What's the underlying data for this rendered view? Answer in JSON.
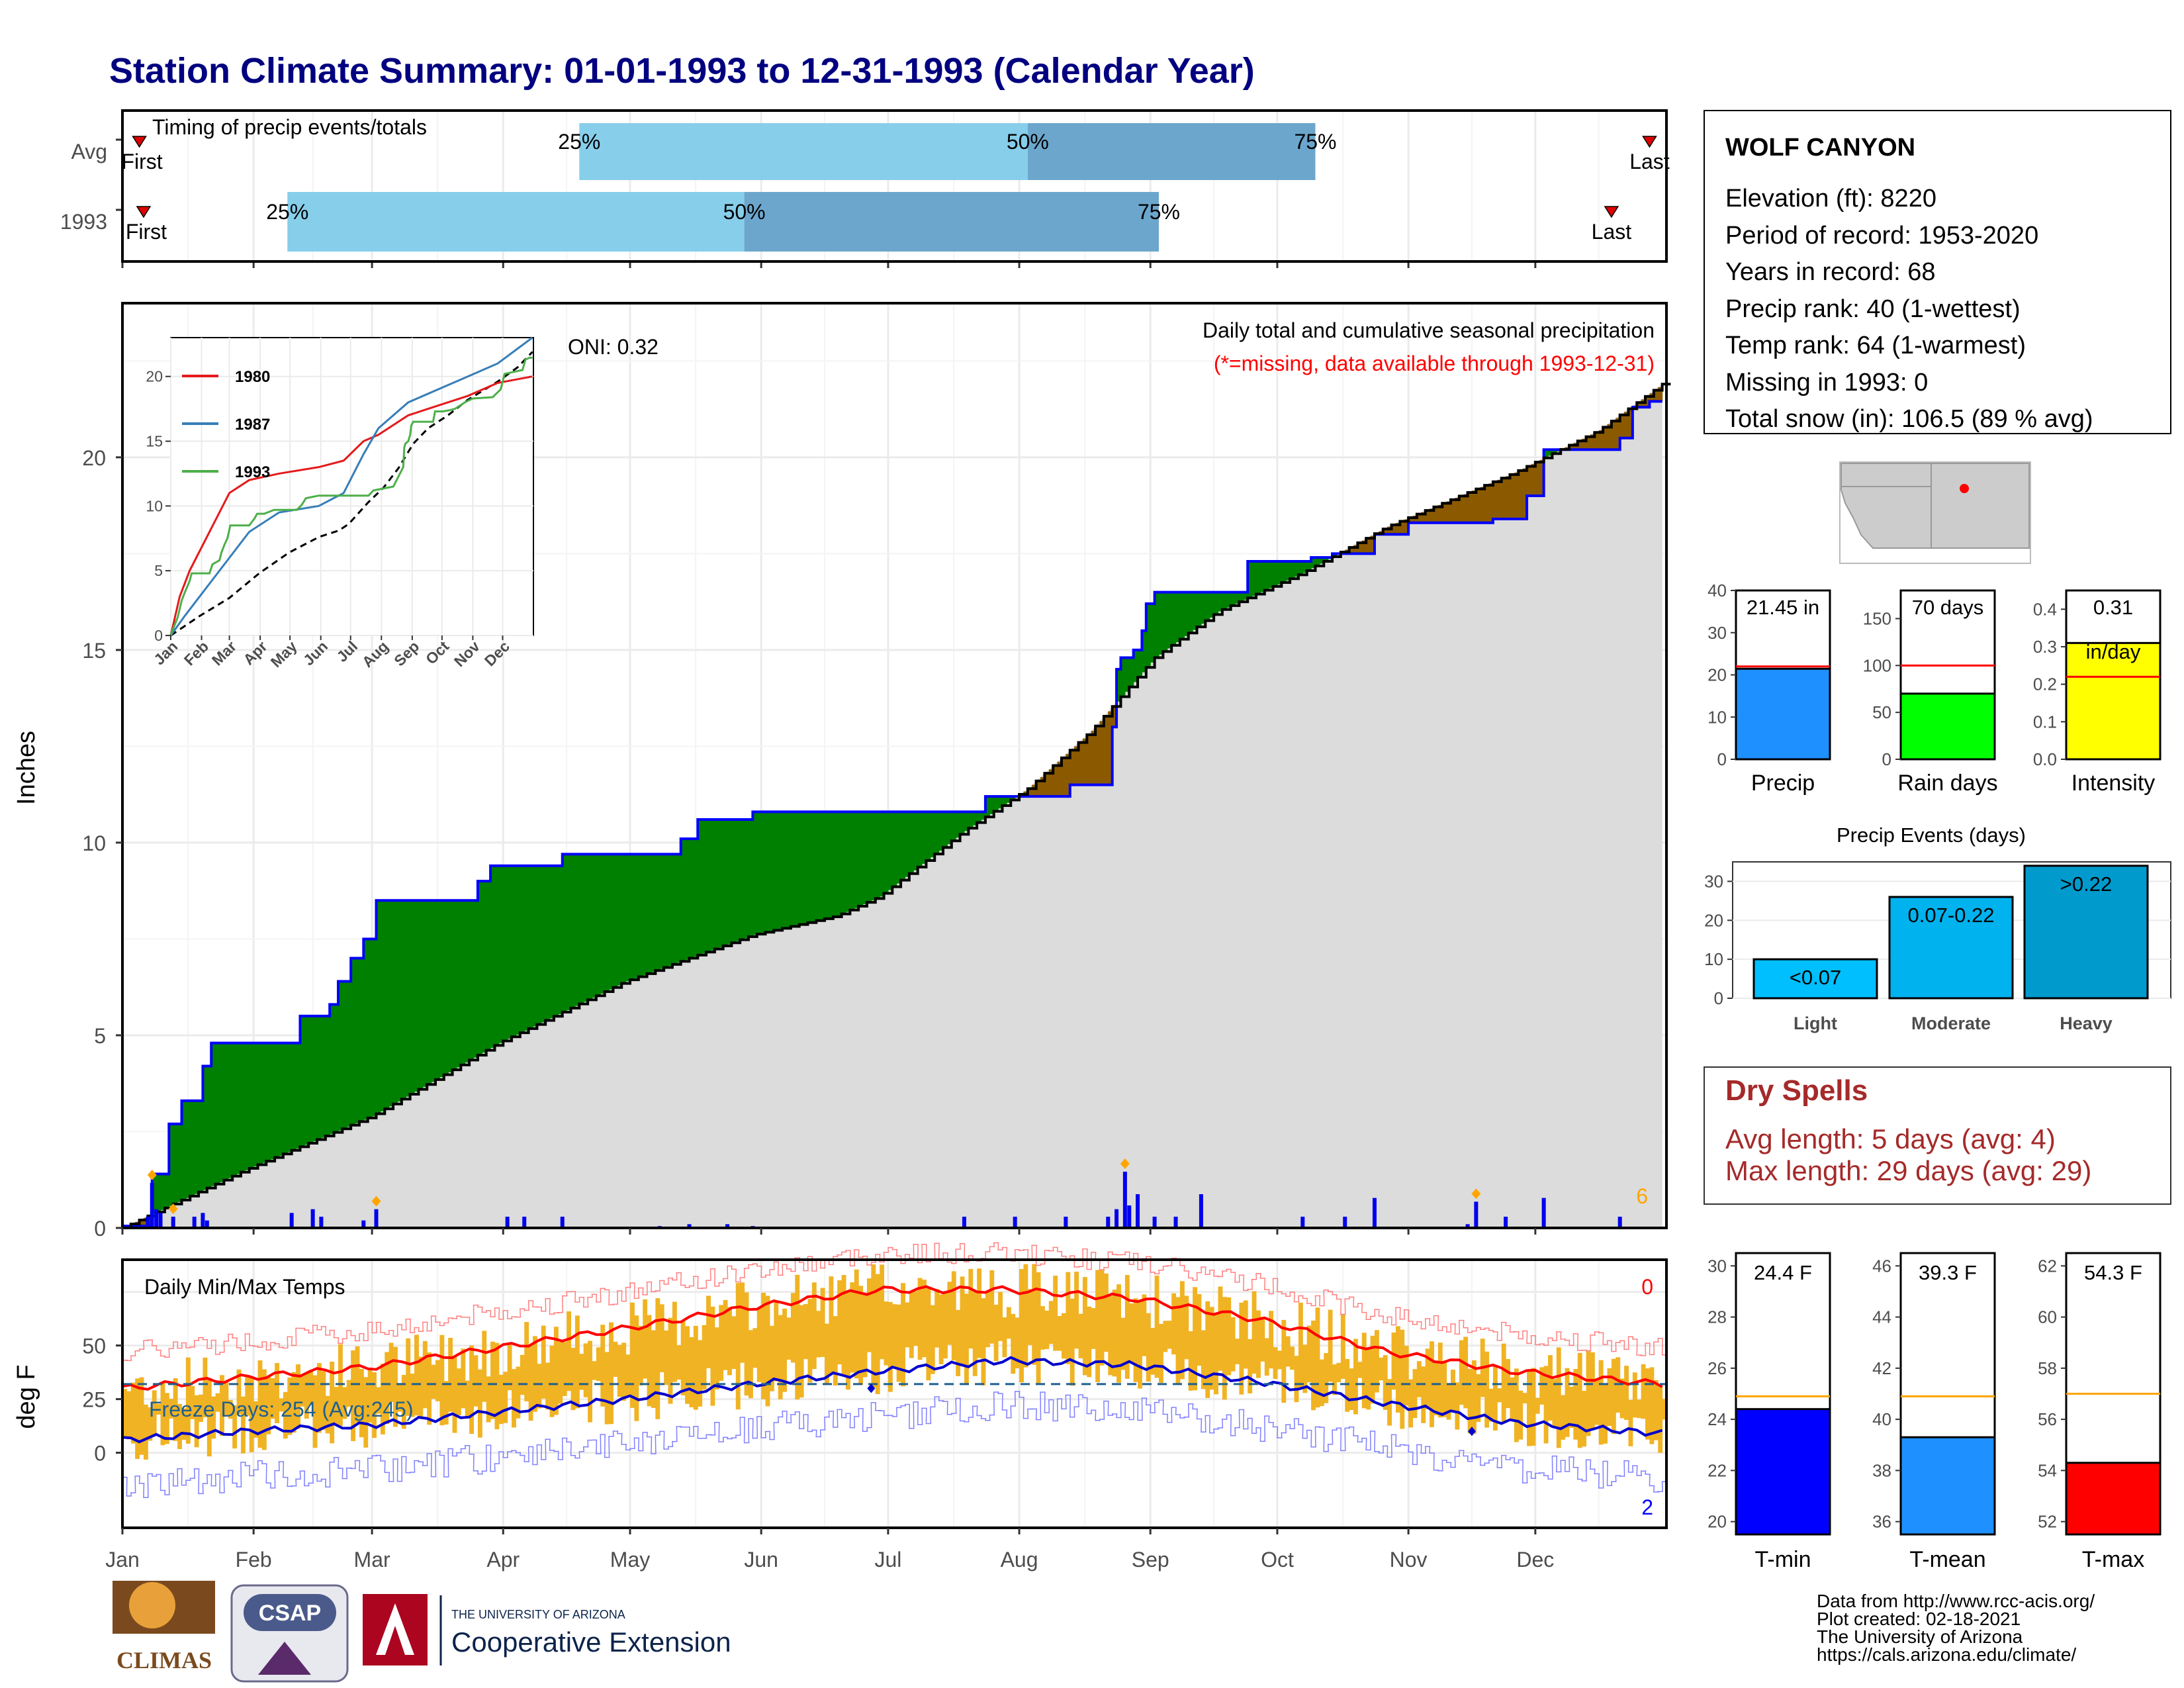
{
  "header": {
    "title": "Station Climate Summary: 01-01-1993 to 12-31-1993 (Calendar Year)"
  },
  "colors": {
    "title": "#000080",
    "light_blue": "#87ceeb",
    "mid_blue": "#6ca6cd",
    "wet_green": "#008000",
    "dry_brown": "#8b5a00",
    "normal_gray": "#dcdcdc",
    "precip_bar": "#1e90ff",
    "rain_days_bar": "#00ff00",
    "intensity_bar": "#ffff00",
    "tmin_bar": "#0000ff",
    "tmean_bar": "#1e90ff",
    "tmax_bar": "#ff0000",
    "temp_range": "#f0b323",
    "dry_spells_text": "#a52a2a",
    "avg_line_red": "#ff0000",
    "avg_line_orange": "#ffa500"
  },
  "timing_panel": {
    "title": "Timing of precip events/totals",
    "rows": [
      {
        "label": "Avg",
        "first_label": "First",
        "last_label": "Last",
        "p25": "25%",
        "p50": "50%",
        "p75": "75%",
        "p25_doy": 109,
        "p50_doy": 215,
        "p75_doy": 283,
        "first_doy": 5,
        "last_doy": 362
      },
      {
        "label": "1993",
        "first_label": "First",
        "last_label": "Last",
        "p25": "25%",
        "p50": "50%",
        "p75": "75%",
        "p25_doy": 40,
        "p50_doy": 148,
        "p75_doy": 246,
        "first_doy": 6,
        "last_doy": 353
      }
    ]
  },
  "main_panel": {
    "ylabel": "Inches",
    "caption_line1": "Daily total and cumulative seasonal precipitation",
    "caption_line2": "(*=missing, data available through 1993-12-31)",
    "oni": "ONI: 0.32",
    "corner_count": "6",
    "yticks": [
      "0",
      "5",
      "10",
      "15",
      "20"
    ],
    "months": [
      "Jan",
      "Feb",
      "Mar",
      "Apr",
      "May",
      "Jun",
      "Jul",
      "Aug",
      "Sep",
      "Oct",
      "Nov",
      "Dec"
    ]
  },
  "inset_panel": {
    "yticks": [
      "0",
      "5",
      "10",
      "15",
      "20"
    ],
    "months": [
      "Jan",
      "Feb",
      "Mar",
      "Apr",
      "May",
      "Jun",
      "Jul",
      "Aug",
      "Sep",
      "Oct",
      "Nov",
      "Dec"
    ],
    "legend": [
      {
        "name": "1980",
        "color": "#e41a1c"
      },
      {
        "name": "1987",
        "color": "#377eb8"
      },
      {
        "name": "1993",
        "color": "#4daf4a"
      }
    ]
  },
  "temp_panel": {
    "title": "Daily Min/Max Temps",
    "ylabel": "deg F",
    "freeze_label": "Freeze Days: 254 (Avg:245)",
    "count_top": "0",
    "count_bottom": "2",
    "yticks": [
      "0",
      "25",
      "50"
    ],
    "months": [
      "Jan",
      "Feb",
      "Mar",
      "Apr",
      "May",
      "Jun",
      "Jul",
      "Aug",
      "Sep",
      "Oct",
      "Nov",
      "Dec"
    ]
  },
  "station": {
    "name": "WOLF CANYON",
    "lines": [
      "Elevation (ft): 8220",
      "Period of record: 1953-2020",
      "Years in record: 68",
      "Precip rank: 40 (1-wettest)",
      "Temp rank: 64 (1-warmest)",
      "Missing in 1993: 0",
      "Total snow (in): 106.5 (89 % avg)"
    ]
  },
  "gauges_precip": [
    {
      "label": "Precip",
      "value_text": "21.45 in",
      "unit_text": "",
      "yticks": [
        "0",
        "10",
        "20",
        "30",
        "40"
      ]
    },
    {
      "label": "Rain days",
      "value_text": "70 days",
      "unit_text": "",
      "yticks": [
        "0",
        "50",
        "100",
        "150"
      ]
    },
    {
      "label": "Intensity",
      "value_text": "0.31",
      "unit_text": "in/day",
      "yticks": [
        "0.0",
        "0.1",
        "0.2",
        "0.3",
        "0.4"
      ]
    }
  ],
  "precip_events": {
    "title": "Precip Events (days)",
    "yticks": [
      "0",
      "10",
      "20",
      "30"
    ],
    "bars": [
      {
        "category": "Light",
        "label": "<0.07",
        "color": "#00bfff"
      },
      {
        "category": "Moderate",
        "label": "0.07-0.22",
        "color": "#00b2ee"
      },
      {
        "category": "Heavy",
        "label": ">0.22",
        "color": "#009acd"
      }
    ]
  },
  "dry_spells": {
    "title": "Dry Spells",
    "avg_line": "Avg length: 5 days (avg: 4)",
    "max_line": "Max length: 29 days (avg: 29)"
  },
  "gauges_temp": [
    {
      "label": "T-min",
      "value_text": "24.4 F",
      "yticks": [
        "20",
        "22",
        "24",
        "26",
        "28",
        "30"
      ]
    },
    {
      "label": "T-mean",
      "value_text": "39.3 F",
      "yticks": [
        "36",
        "38",
        "40",
        "42",
        "44",
        "46"
      ]
    },
    {
      "label": "T-max",
      "value_text": "54.3 F",
      "yticks": [
        "52",
        "54",
        "56",
        "58",
        "60",
        "62"
      ]
    }
  ],
  "footer": {
    "lines": [
      "Data from http://www.rcc-acis.org/",
      "Plot created: 02-18-2021",
      "The University of Arizona",
      "https://cals.arizona.edu/climate/"
    ],
    "logo_climas": "CLIMAS",
    "logo_csap": "CSAP",
    "ua_small": "THE UNIVERSITY OF ARIZONA",
    "ua_big": "Cooperative Extension"
  },
  "chart_data": [
    {
      "type": "area",
      "title": "Daily total and cumulative seasonal precipitation",
      "ylabel": "Inches",
      "ylim": [
        0,
        24
      ],
      "x_unit": "day of year",
      "series": [
        {
          "name": "1993 cumulative precipitation",
          "points": [
            [
              1,
              0.05
            ],
            [
              8,
              1.4
            ],
            [
              12,
              2.7
            ],
            [
              15,
              3.3
            ],
            [
              20,
              4.2
            ],
            [
              22,
              4.8
            ],
            [
              40,
              4.8
            ],
            [
              43,
              5.5
            ],
            [
              50,
              5.8
            ],
            [
              52,
              6.4
            ],
            [
              55,
              7.0
            ],
            [
              58,
              7.5
            ],
            [
              61,
              8.5
            ],
            [
              80,
              8.5
            ],
            [
              85,
              9.0
            ],
            [
              88,
              9.4
            ],
            [
              95,
              9.4
            ],
            [
              105,
              9.7
            ],
            [
              128,
              9.7
            ],
            [
              133,
              10.1
            ],
            [
              137,
              10.6
            ],
            [
              150,
              10.8
            ],
            [
              175,
              10.8
            ],
            [
              200,
              10.8
            ],
            [
              205,
              11.2
            ],
            [
              225,
              11.5
            ],
            [
              235,
              13.0
            ],
            [
              236,
              14.5
            ],
            [
              237,
              14.8
            ],
            [
              240,
              15.0
            ],
            [
              242,
              15.5
            ],
            [
              243,
              16.2
            ],
            [
              245,
              16.5
            ],
            [
              265,
              16.5
            ],
            [
              267,
              17.3
            ],
            [
              275,
              17.3
            ],
            [
              282,
              17.4
            ],
            [
              287,
              17.5
            ],
            [
              297,
              18.0
            ],
            [
              305,
              18.3
            ],
            [
              325,
              18.4
            ],
            [
              333,
              19.0
            ],
            [
              337,
              20.2
            ],
            [
              355,
              20.5
            ],
            [
              358,
              21.3
            ],
            [
              362,
              21.45
            ],
            [
              365,
              21.45
            ]
          ]
        },
        {
          "name": "Average cumulative precipitation",
          "points": [
            [
              1,
              0
            ],
            [
              30,
              1.5
            ],
            [
              60,
              2.9
            ],
            [
              90,
              4.8
            ],
            [
              120,
              6.4
            ],
            [
              150,
              7.6
            ],
            [
              170,
              8.1
            ],
            [
              180,
              8.6
            ],
            [
              200,
              10.3
            ],
            [
              215,
              11.4
            ],
            [
              230,
              12.9
            ],
            [
              245,
              14.8
            ],
            [
              260,
              16.0
            ],
            [
              280,
              17.0
            ],
            [
              300,
              18.2
            ],
            [
              330,
              19.6
            ],
            [
              350,
              20.7
            ],
            [
              365,
              21.9
            ]
          ]
        }
      ]
    },
    {
      "type": "bar",
      "title": "Daily precipitation",
      "ylabel": "Inches",
      "points": [
        [
          7,
          0.3
        ],
        [
          8,
          1.2
        ],
        [
          9,
          0.5
        ],
        [
          10,
          0.4
        ],
        [
          13,
          0.3
        ],
        [
          18,
          0.3
        ],
        [
          20,
          0.4
        ],
        [
          21,
          0.2
        ],
        [
          41,
          0.4
        ],
        [
          46,
          0.5
        ],
        [
          48,
          0.3
        ],
        [
          58,
          0.2
        ],
        [
          61,
          0.5
        ],
        [
          92,
          0.3
        ],
        [
          96,
          0.3
        ],
        [
          105,
          0.3
        ],
        [
          128,
          0.05
        ],
        [
          135,
          0.1
        ],
        [
          144,
          0.1
        ],
        [
          150,
          0.05
        ],
        [
          175,
          0.03
        ],
        [
          200,
          0.3
        ],
        [
          212,
          0.3
        ],
        [
          224,
          0.3
        ],
        [
          234,
          0.3
        ],
        [
          236,
          0.5
        ],
        [
          238,
          1.5
        ],
        [
          239,
          0.6
        ],
        [
          241,
          0.9
        ],
        [
          245,
          0.3
        ],
        [
          250,
          0.3
        ],
        [
          256,
          0.9
        ],
        [
          280,
          0.3
        ],
        [
          290,
          0.3
        ],
        [
          297,
          0.8
        ],
        [
          319,
          0.1
        ],
        [
          321,
          0.7
        ],
        [
          328,
          0.3
        ],
        [
          337,
          0.8
        ],
        [
          355,
          0.3
        ]
      ]
    },
    {
      "type": "line",
      "title": "Daily Min/Max Temps",
      "ylabel": "deg F",
      "ylim": [
        -35,
        90
      ],
      "series": [
        {
          "name": "Average max",
          "points": [
            [
              1,
              30
            ],
            [
              30,
              35
            ],
            [
              60,
              40
            ],
            [
              90,
              49
            ],
            [
              120,
              58
            ],
            [
              150,
              68
            ],
            [
              180,
              76
            ],
            [
              210,
              76
            ],
            [
              240,
              72
            ],
            [
              270,
              62
            ],
            [
              300,
              47
            ],
            [
              330,
              38
            ],
            [
              365,
              32
            ]
          ]
        },
        {
          "name": "Average min",
          "points": [
            [
              1,
              6
            ],
            [
              30,
              10
            ],
            [
              60,
              13
            ],
            [
              90,
              19
            ],
            [
              120,
              25
            ],
            [
              150,
              32
            ],
            [
              180,
              38
            ],
            [
              210,
              43
            ],
            [
              240,
              41
            ],
            [
              270,
              33
            ],
            [
              300,
              23
            ],
            [
              330,
              14
            ],
            [
              365,
              9
            ]
          ]
        },
        {
          "name": "Freeze threshold",
          "points": [
            [
              1,
              32
            ],
            [
              365,
              32
            ]
          ]
        }
      ]
    },
    {
      "type": "bar",
      "title": "Precip Events (days)",
      "categories": [
        "Light",
        "Moderate",
        "Heavy"
      ],
      "values": [
        10,
        26,
        34
      ],
      "ylim": [
        0,
        35
      ]
    },
    {
      "type": "bar",
      "categories": [
        "Precip",
        "Rain days",
        "Intensity"
      ],
      "values": [
        21.45,
        70,
        0.31
      ],
      "averages": [
        22,
        100,
        0.22
      ]
    },
    {
      "type": "bar",
      "categories": [
        "T-min",
        "T-mean",
        "T-max"
      ],
      "values": [
        24.4,
        39.3,
        54.3
      ],
      "averages": [
        24.9,
        40.9,
        57.0
      ]
    }
  ]
}
